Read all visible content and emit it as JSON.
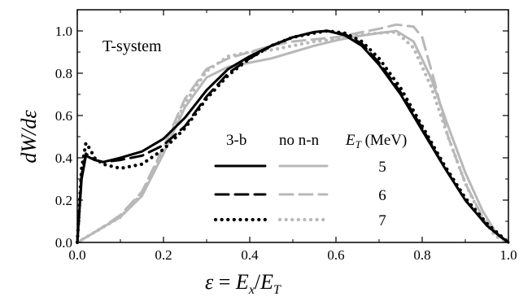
{
  "chart_data": {
    "type": "line",
    "annotation": "T-system",
    "xlabel": "ε = Ex/ET",
    "ylabel": "dW/dε",
    "xlim": [
      0.0,
      1.0
    ],
    "ylim": [
      0.0,
      1.1
    ],
    "x_ticks": [
      "0.0",
      "0.2",
      "0.4",
      "0.6",
      "0.8",
      "1.0"
    ],
    "y_ticks": [
      "0.0",
      "0.2",
      "0.4",
      "0.6",
      "0.8",
      "1.0"
    ],
    "legend": {
      "col_headers": [
        "3-b",
        "no n-n",
        "E_T (MeV)"
      ],
      "energies": [
        "5",
        "6",
        "7"
      ],
      "placement": "center-bottom"
    },
    "series": [
      {
        "label": "3-b, E_T = 5",
        "color": "#000000",
        "dash": "solid",
        "x": [
          0,
          0.01,
          0.02,
          0.04,
          0.06,
          0.1,
          0.15,
          0.2,
          0.25,
          0.3,
          0.35,
          0.4,
          0.45,
          0.5,
          0.55,
          0.58,
          0.62,
          0.66,
          0.7,
          0.75,
          0.8,
          0.85,
          0.9,
          0.95,
          0.98,
          1.0
        ],
        "y": [
          0,
          0.3,
          0.41,
          0.39,
          0.38,
          0.4,
          0.43,
          0.49,
          0.59,
          0.72,
          0.82,
          0.88,
          0.93,
          0.97,
          0.995,
          1.0,
          0.98,
          0.93,
          0.84,
          0.7,
          0.53,
          0.36,
          0.2,
          0.08,
          0.03,
          0.0
        ]
      },
      {
        "label": "3-b, E_T = 6",
        "color": "#000000",
        "dash": "long-dash",
        "x": [
          0,
          0.01,
          0.02,
          0.04,
          0.06,
          0.1,
          0.15,
          0.2,
          0.25,
          0.3,
          0.35,
          0.4,
          0.45,
          0.5,
          0.55,
          0.58,
          0.62,
          0.66,
          0.7,
          0.75,
          0.8,
          0.85,
          0.9,
          0.95,
          0.98,
          1.0
        ],
        "y": [
          0,
          0.32,
          0.42,
          0.39,
          0.38,
          0.39,
          0.41,
          0.46,
          0.55,
          0.69,
          0.8,
          0.87,
          0.93,
          0.97,
          0.995,
          1.0,
          0.985,
          0.94,
          0.85,
          0.71,
          0.54,
          0.36,
          0.2,
          0.08,
          0.03,
          0.0
        ]
      },
      {
        "label": "3-b, E_T = 7",
        "color": "#000000",
        "dash": "dotted",
        "x": [
          0,
          0.01,
          0.02,
          0.03,
          0.04,
          0.06,
          0.1,
          0.15,
          0.2,
          0.25,
          0.3,
          0.35,
          0.4,
          0.45,
          0.5,
          0.55,
          0.58,
          0.62,
          0.66,
          0.7,
          0.75,
          0.8,
          0.85,
          0.9,
          0.95,
          0.98,
          1.0
        ],
        "y": [
          0,
          0.35,
          0.47,
          0.44,
          0.4,
          0.37,
          0.35,
          0.37,
          0.44,
          0.54,
          0.68,
          0.79,
          0.87,
          0.93,
          0.97,
          0.99,
          1.0,
          0.99,
          0.95,
          0.87,
          0.73,
          0.55,
          0.37,
          0.21,
          0.09,
          0.035,
          0.0
        ]
      },
      {
        "label": "no n-n, E_T = 5",
        "color": "#b8b8b8",
        "dash": "solid",
        "x": [
          0,
          0.05,
          0.1,
          0.15,
          0.2,
          0.25,
          0.3,
          0.35,
          0.4,
          0.45,
          0.5,
          0.55,
          0.6,
          0.65,
          0.7,
          0.74,
          0.78,
          0.82,
          0.86,
          0.9,
          0.94,
          0.97,
          1.0
        ],
        "y": [
          0,
          0.06,
          0.12,
          0.22,
          0.42,
          0.64,
          0.78,
          0.83,
          0.85,
          0.87,
          0.9,
          0.93,
          0.955,
          0.975,
          0.99,
          1.0,
          0.95,
          0.78,
          0.55,
          0.33,
          0.15,
          0.05,
          0.0
        ]
      },
      {
        "label": "no n-n, E_T = 6",
        "color": "#b8b8b8",
        "dash": "long-dash",
        "x": [
          0,
          0.05,
          0.1,
          0.15,
          0.2,
          0.25,
          0.3,
          0.35,
          0.4,
          0.45,
          0.5,
          0.55,
          0.6,
          0.65,
          0.7,
          0.74,
          0.78,
          0.8,
          0.83,
          0.86,
          0.9,
          0.94,
          0.97,
          1.0
        ],
        "y": [
          0,
          0.06,
          0.13,
          0.24,
          0.45,
          0.68,
          0.82,
          0.87,
          0.9,
          0.93,
          0.95,
          0.96,
          0.97,
          0.99,
          1.01,
          1.03,
          1.02,
          0.97,
          0.75,
          0.5,
          0.28,
          0.12,
          0.04,
          0.0
        ]
      },
      {
        "label": "no n-n, E_T = 7",
        "color": "#b8b8b8",
        "dash": "dotted",
        "x": [
          0,
          0.05,
          0.1,
          0.15,
          0.2,
          0.25,
          0.3,
          0.35,
          0.4,
          0.45,
          0.5,
          0.55,
          0.6,
          0.65,
          0.7,
          0.74,
          0.78,
          0.82,
          0.86,
          0.9,
          0.94,
          0.97,
          1.0
        ],
        "y": [
          0,
          0.06,
          0.12,
          0.23,
          0.44,
          0.66,
          0.81,
          0.88,
          0.9,
          0.91,
          0.93,
          0.95,
          0.96,
          0.98,
          0.99,
          0.995,
          0.92,
          0.74,
          0.5,
          0.28,
          0.11,
          0.03,
          0.0
        ]
      }
    ]
  }
}
